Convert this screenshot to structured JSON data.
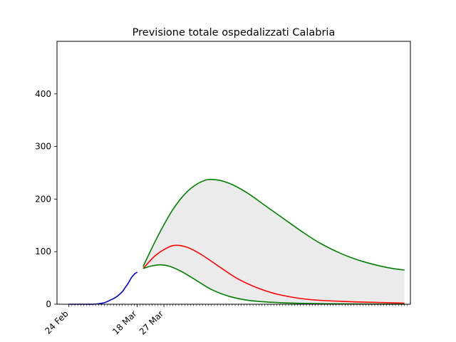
{
  "chart_data": {
    "type": "line",
    "title": "Previsione totale ospedalizzati Calabria",
    "xlabel": "",
    "ylabel": "",
    "x_unit": "day",
    "xlim": [
      "2020-02-20",
      "2020-06-18"
    ],
    "ylim": [
      0,
      500
    ],
    "yticks": [
      0,
      100,
      200,
      300,
      400
    ],
    "xtick_labels": [
      {
        "date": "2020-02-24",
        "label": "24 Feb"
      },
      {
        "date": "2020-03-18",
        "label": "18 Mar"
      },
      {
        "date": "2020-03-27",
        "label": "27 Mar"
      }
    ],
    "minor_ticks": {
      "start": "2020-02-24",
      "end": "2020-06-17",
      "step_days": 1
    },
    "grid": false,
    "legend": "none",
    "series": [
      {
        "role": "observed",
        "color": "#0000cd",
        "points": [
          [
            "2020-02-24",
            0
          ],
          [
            "2020-02-26",
            0
          ],
          [
            "2020-02-28",
            0
          ],
          [
            "2020-03-01",
            0
          ],
          [
            "2020-03-03",
            0
          ],
          [
            "2020-03-05",
            1
          ],
          [
            "2020-03-07",
            3
          ],
          [
            "2020-03-09",
            8
          ],
          [
            "2020-03-11",
            14
          ],
          [
            "2020-03-13",
            24
          ],
          [
            "2020-03-14",
            32
          ],
          [
            "2020-03-15",
            40
          ],
          [
            "2020-03-16",
            50
          ],
          [
            "2020-03-17",
            57
          ],
          [
            "2020-03-18",
            61
          ]
        ]
      },
      {
        "role": "upper",
        "color": "#008000",
        "points": [
          [
            "2020-03-20",
            72
          ],
          [
            "2020-03-25",
            130
          ],
          [
            "2020-03-30",
            180
          ],
          [
            "2020-04-04",
            215
          ],
          [
            "2020-04-09",
            234
          ],
          [
            "2020-04-13",
            237
          ],
          [
            "2020-04-18",
            230
          ],
          [
            "2020-04-24",
            212
          ],
          [
            "2020-04-30",
            188
          ],
          [
            "2020-05-06",
            164
          ],
          [
            "2020-05-12",
            140
          ],
          [
            "2020-05-18",
            118
          ],
          [
            "2020-05-25",
            98
          ],
          [
            "2020-06-01",
            83
          ],
          [
            "2020-06-10",
            70
          ],
          [
            "2020-06-16",
            65
          ]
        ]
      },
      {
        "role": "central",
        "color": "#ff0000",
        "points": [
          [
            "2020-03-20",
            68
          ],
          [
            "2020-03-24",
            92
          ],
          [
            "2020-03-28",
            107
          ],
          [
            "2020-03-31",
            112
          ],
          [
            "2020-04-04",
            108
          ],
          [
            "2020-04-09",
            93
          ],
          [
            "2020-04-15",
            70
          ],
          [
            "2020-04-21",
            48
          ],
          [
            "2020-04-28",
            30
          ],
          [
            "2020-05-05",
            18
          ],
          [
            "2020-05-15",
            9
          ],
          [
            "2020-05-28",
            5
          ],
          [
            "2020-06-10",
            3
          ],
          [
            "2020-06-16",
            2
          ]
        ]
      },
      {
        "role": "lower",
        "color": "#008000",
        "points": [
          [
            "2020-03-20",
            68
          ],
          [
            "2020-03-23",
            73
          ],
          [
            "2020-03-26",
            75
          ],
          [
            "2020-03-29",
            72
          ],
          [
            "2020-04-02",
            62
          ],
          [
            "2020-04-07",
            45
          ],
          [
            "2020-04-12",
            28
          ],
          [
            "2020-04-18",
            15
          ],
          [
            "2020-04-25",
            7
          ],
          [
            "2020-05-05",
            3
          ],
          [
            "2020-05-20",
            1
          ],
          [
            "2020-06-16",
            0
          ]
        ]
      }
    ],
    "band": {
      "between": [
        "upper",
        "lower"
      ],
      "color": "#ebebeb"
    }
  }
}
